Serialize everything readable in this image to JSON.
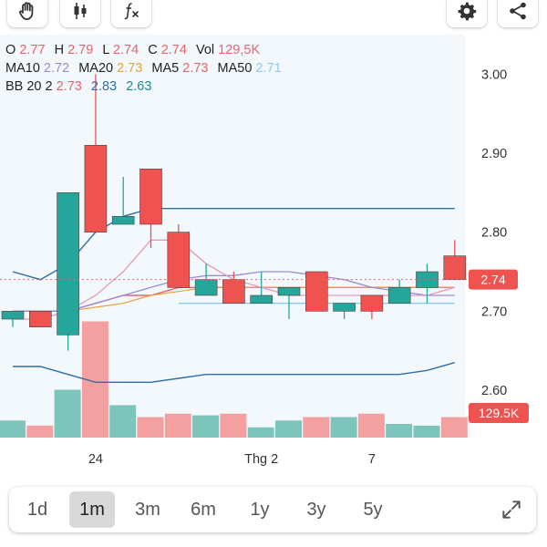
{
  "toolbar": {
    "icons": [
      "hand-icon",
      "candlestick-icon",
      "function-icon",
      "gear-icon",
      "share-icon"
    ]
  },
  "legend": {
    "ohlc": [
      {
        "label": "O",
        "value": "2.77"
      },
      {
        "label": "H",
        "value": "2.79"
      },
      {
        "label": "L",
        "value": "2.74"
      },
      {
        "label": "C",
        "value": "2.74"
      },
      {
        "label": "Vol",
        "value": "129,5K"
      }
    ],
    "ma": [
      {
        "label": "MA10",
        "value": "2.72",
        "color": "#9b8ad6"
      },
      {
        "label": "MA20",
        "value": "2.73",
        "color": "#e8a23a"
      },
      {
        "label": "MA5",
        "value": "2.73",
        "color": "#e8636a"
      },
      {
        "label": "MA50",
        "value": "2.71",
        "color": "#8ecbe8"
      }
    ],
    "bb": {
      "label": "BB 20 2",
      "values": [
        {
          "value": "2.73",
          "color": "#e8636a"
        },
        {
          "value": "2.83",
          "color": "#2f6fa3"
        },
        {
          "value": "2.63",
          "color": "#1f8a8a"
        }
      ]
    }
  },
  "chart_data": {
    "type": "candlestick",
    "y_ticks": [
      "3.00",
      "2.90",
      "2.80",
      "2.70",
      "2.60"
    ],
    "ylim": [
      2.54,
      3.05
    ],
    "x_labels": [
      {
        "label": "24",
        "index": 3
      },
      {
        "label": "Thg 2",
        "index": 9
      },
      {
        "label": "7",
        "index": 13
      }
    ],
    "price_marker": "2.74",
    "volume_marker": "129.5K",
    "up_color": "#26a69a",
    "down_color": "#ef5350",
    "candles": [
      {
        "o": 2.69,
        "h": 2.7,
        "l": 2.68,
        "c": 2.7
      },
      {
        "o": 2.7,
        "h": 2.7,
        "l": 2.68,
        "c": 2.68
      },
      {
        "o": 2.67,
        "h": 2.85,
        "l": 2.65,
        "c": 2.85
      },
      {
        "o": 2.91,
        "h": 3.0,
        "l": 2.8,
        "c": 2.8
      },
      {
        "o": 2.81,
        "h": 2.87,
        "l": 2.81,
        "c": 2.82
      },
      {
        "o": 2.88,
        "h": 2.88,
        "l": 2.78,
        "c": 2.81
      },
      {
        "o": 2.8,
        "h": 2.81,
        "l": 2.73,
        "c": 2.73
      },
      {
        "o": 2.72,
        "h": 2.76,
        "l": 2.72,
        "c": 2.74
      },
      {
        "o": 2.74,
        "h": 2.75,
        "l": 2.71,
        "c": 2.71
      },
      {
        "o": 2.71,
        "h": 2.75,
        "l": 2.71,
        "c": 2.72
      },
      {
        "o": 2.72,
        "h": 2.73,
        "l": 2.69,
        "c": 2.73
      },
      {
        "o": 2.75,
        "h": 2.75,
        "l": 2.7,
        "c": 2.7
      },
      {
        "o": 2.7,
        "h": 2.71,
        "l": 2.69,
        "c": 2.71
      },
      {
        "o": 2.72,
        "h": 2.72,
        "l": 2.69,
        "c": 2.7
      },
      {
        "o": 2.71,
        "h": 2.74,
        "l": 2.71,
        "c": 2.73
      },
      {
        "o": 2.73,
        "h": 2.76,
        "l": 2.71,
        "c": 2.75
      },
      {
        "o": 2.77,
        "h": 2.79,
        "l": 2.74,
        "c": 2.74
      }
    ],
    "volumes": [
      10,
      7,
      28,
      68,
      19,
      12,
      14,
      13,
      14,
      6,
      10,
      12,
      12,
      14,
      8,
      7,
      12
    ],
    "volume_max": 72,
    "ma5": [
      2.69,
      2.69,
      2.7,
      2.72,
      2.75,
      2.79,
      2.79,
      2.76,
      2.74,
      2.73,
      2.72,
      2.72,
      2.72,
      2.72,
      2.72,
      2.72,
      2.73
    ],
    "ma10": [
      2.7,
      2.7,
      2.7,
      2.71,
      2.72,
      2.73,
      2.74,
      2.745,
      2.745,
      2.75,
      2.75,
      2.745,
      2.74,
      2.73,
      2.725,
      2.72,
      2.72
    ],
    "ma20": [
      2.7,
      2.7,
      2.7,
      2.705,
      2.71,
      2.72,
      2.725,
      2.73,
      2.73,
      2.73,
      2.73,
      2.73,
      2.73,
      2.73,
      2.73,
      2.73,
      2.73
    ],
    "ma50": {
      "from": 6,
      "value": 2.71
    },
    "bb_upper": [
      2.75,
      2.74,
      2.76,
      2.8,
      2.82,
      2.83,
      2.83,
      2.83,
      2.83,
      2.83,
      2.83,
      2.83,
      2.83,
      2.83,
      2.83,
      2.83,
      2.83
    ],
    "bb_middle": [
      2.7,
      2.7,
      2.7,
      2.71,
      2.72,
      2.72,
      2.73,
      2.73,
      2.73,
      2.73,
      2.73,
      2.73,
      2.73,
      2.73,
      2.73,
      2.73,
      2.73
    ],
    "bb_lower": [
      2.63,
      2.63,
      2.62,
      2.61,
      2.61,
      2.61,
      2.615,
      2.62,
      2.62,
      2.62,
      2.62,
      2.62,
      2.62,
      2.62,
      2.62,
      2.625,
      2.635
    ],
    "current_price": 2.74
  },
  "periods": {
    "items": [
      "1d",
      "1m",
      "3m",
      "6m",
      "1y",
      "3y",
      "5y"
    ],
    "active": "1m"
  }
}
